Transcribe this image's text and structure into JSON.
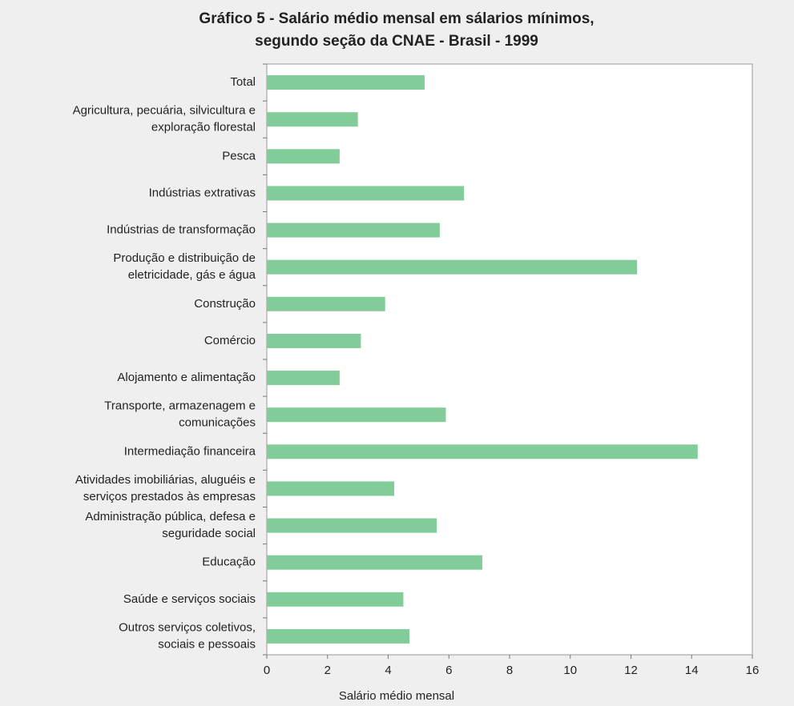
{
  "chart_data": {
    "type": "bar",
    "orientation": "horizontal",
    "title": "Gráfico 5 - Salário médio mensal em sálarios mínimos,\nsegundo  seção da CNAE  - Brasil - 1999",
    "x_label": "Salário médio mensal",
    "categories": [
      "Total",
      "Agricultura, pecuária, silvicultura e\nexploração florestal",
      "Pesca",
      "Indústrias extrativas",
      "Indústrias de transformação",
      "Produção e distribuição de\neletricidade, gás e água",
      "Construção",
      "Comércio",
      "Alojamento e alimentação",
      "Transporte, armazenagem e\ncomunicações",
      "Intermediação financeira",
      "Atividades imobiliárias, aluguéis e\nserviços prestados às empresas",
      "Administração pública, defesa e\nseguridade social",
      "Educação",
      "Saúde e serviços sociais",
      "Outros serviços coletivos,\nsociais e pessoais"
    ],
    "values": [
      5.2,
      3.0,
      2.4,
      6.5,
      5.7,
      12.2,
      3.9,
      3.1,
      2.4,
      5.9,
      14.2,
      4.2,
      5.6,
      7.1,
      4.5,
      4.7
    ],
    "color": "#82cc9a",
    "xlim": [
      0,
      16
    ],
    "xticks": [
      0,
      2,
      4,
      6,
      8,
      10,
      12,
      14,
      16
    ]
  }
}
